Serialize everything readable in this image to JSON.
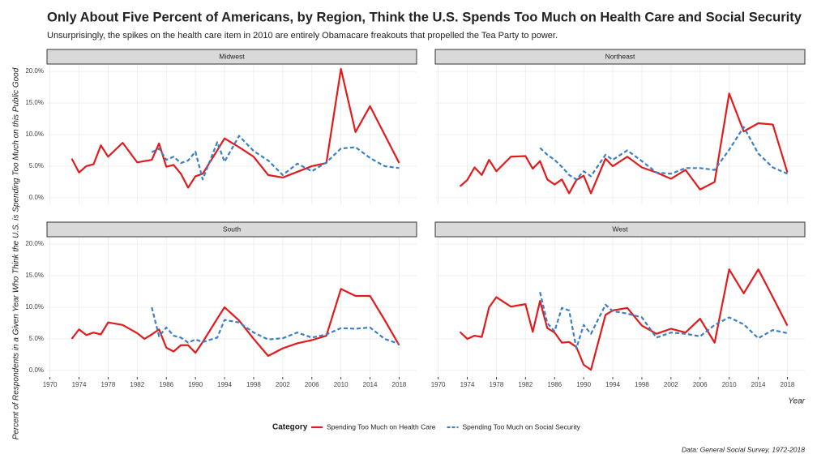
{
  "title": "Only About Five Percent of Americans, by Region, Think the U.S. Spends Too Much on Health Care and Social Security",
  "subtitle": "Unsurprisingly, the spikes on the health care item in 2010 are entirely Obamacare freakouts that propelled the Tea Party to power.",
  "y_label": "Percent of Respondents in a Given Year Who Think the U.S. is Spending Too Much on this Public Good",
  "x_label": "Year",
  "legend_title": "Category",
  "caption": "Data: General Social Survey, 1972-2018",
  "chart_data": [
    {
      "type": "line",
      "facet_label": "Midwest",
      "x": [
        1973,
        1974,
        1975,
        1976,
        1977,
        1978,
        1980,
        1982,
        1983,
        1984,
        1985,
        1986,
        1987,
        1988,
        1989,
        1990,
        1991,
        1993,
        1994,
        1996,
        1998,
        2000,
        2002,
        2004,
        2006,
        2008,
        2010,
        2012,
        2014,
        2016,
        2018
      ],
      "series": [
        {
          "name": "Spending Too Much on Health Care",
          "color": "#e31a1c",
          "dash": false,
          "values": [
            6.2,
            4.0,
            5.0,
            5.3,
            8.3,
            6.5,
            8.7,
            5.6,
            5.8,
            6.0,
            8.6,
            4.9,
            5.2,
            3.8,
            1.6,
            3.4,
            3.8,
            7.5,
            9.4,
            8.0,
            6.5,
            3.6,
            3.2,
            4.1,
            5.0,
            5.5,
            20.4,
            10.4,
            14.5,
            10.0,
            5.5
          ]
        },
        {
          "name": "Spending Too Much on Social Security",
          "color": "#3a80c3",
          "dash": true,
          "values": [
            null,
            null,
            null,
            null,
            null,
            null,
            null,
            null,
            null,
            7.2,
            7.8,
            6.0,
            6.5,
            5.5,
            5.9,
            7.3,
            2.9,
            8.8,
            5.7,
            9.8,
            7.4,
            5.9,
            3.6,
            5.4,
            4.2,
            5.6,
            7.8,
            8.0,
            6.3,
            5.0,
            4.7
          ]
        }
      ],
      "xlim": [
        1969.6,
        2020.4
      ],
      "ylim": [
        -1.04,
        21.04
      ],
      "xticks": [
        1970,
        1974,
        1978,
        1982,
        1986,
        1990,
        1994,
        1998,
        2002,
        2006,
        2010,
        2014,
        2018
      ],
      "yticks": [
        {
          "value": 0,
          "label": "0.0%"
        },
        {
          "value": 5,
          "label": "5.0%"
        },
        {
          "value": 10,
          "label": "10.0%"
        },
        {
          "value": 15,
          "label": "15.0%"
        },
        {
          "value": 20,
          "label": "20.0%"
        }
      ],
      "grid": true
    },
    {
      "type": "line",
      "facet_label": "Northeast",
      "x": [
        1973,
        1974,
        1975,
        1976,
        1977,
        1978,
        1980,
        1982,
        1983,
        1984,
        1985,
        1986,
        1987,
        1988,
        1989,
        1990,
        1991,
        1993,
        1994,
        1996,
        1998,
        2000,
        2002,
        2004,
        2006,
        2008,
        2010,
        2012,
        2014,
        2016,
        2018
      ],
      "series": [
        {
          "name": "Spending Too Much on Health Care",
          "color": "#e31a1c",
          "dash": false,
          "values": [
            1.8,
            2.8,
            4.8,
            3.6,
            6.0,
            4.2,
            6.5,
            6.6,
            4.6,
            5.8,
            2.9,
            2.1,
            2.9,
            0.7,
            2.8,
            3.5,
            0.7,
            6.2,
            5.0,
            6.5,
            4.8,
            4.0,
            3.0,
            4.4,
            1.3,
            2.5,
            16.5,
            10.5,
            11.8,
            11.6,
            4.0
          ]
        },
        {
          "name": "Spending Too Much on Social Security",
          "color": "#3a80c3",
          "dash": true,
          "values": [
            null,
            null,
            null,
            null,
            null,
            null,
            null,
            null,
            null,
            7.9,
            6.8,
            6.0,
            4.9,
            3.6,
            2.9,
            4.2,
            3.4,
            6.8,
            6.0,
            7.5,
            5.8,
            4.0,
            3.8,
            4.7,
            4.7,
            4.4,
            7.6,
            11.2,
            7.0,
            4.8,
            3.8
          ]
        }
      ],
      "xlim": [
        1969.6,
        2020.4
      ],
      "ylim": [
        -1.04,
        21.04
      ],
      "xticks": [
        1970,
        1974,
        1978,
        1982,
        1986,
        1990,
        1994,
        1998,
        2002,
        2006,
        2010,
        2014,
        2018
      ],
      "yticks": [
        {
          "value": 0,
          "label": "0.0%"
        },
        {
          "value": 5,
          "label": "5.0%"
        },
        {
          "value": 10,
          "label": "10.0%"
        },
        {
          "value": 15,
          "label": "15.0%"
        },
        {
          "value": 20,
          "label": "20.0%"
        }
      ],
      "grid": true
    },
    {
      "type": "line",
      "facet_label": "South",
      "x": [
        1973,
        1974,
        1975,
        1976,
        1977,
        1978,
        1980,
        1982,
        1983,
        1984,
        1985,
        1986,
        1987,
        1988,
        1989,
        1990,
        1991,
        1993,
        1994,
        1996,
        1998,
        2000,
        2002,
        2004,
        2006,
        2008,
        2010,
        2012,
        2014,
        2016,
        2018
      ],
      "series": [
        {
          "name": "Spending Too Much on Health Care",
          "color": "#e31a1c",
          "dash": false,
          "values": [
            5.0,
            6.5,
            5.6,
            6.0,
            5.7,
            7.6,
            7.2,
            5.9,
            5.0,
            5.7,
            6.5,
            3.6,
            3.0,
            4.0,
            4.0,
            2.8,
            4.5,
            8.2,
            10.0,
            7.9,
            5.0,
            2.3,
            3.5,
            4.3,
            4.8,
            5.5,
            12.9,
            11.8,
            11.8,
            8.0,
            4.0
          ]
        },
        {
          "name": "Spending Too Much on Social Security",
          "color": "#3a80c3",
          "dash": true,
          "values": [
            null,
            null,
            null,
            null,
            null,
            null,
            null,
            null,
            null,
            10.0,
            5.4,
            6.8,
            5.5,
            5.2,
            4.4,
            4.9,
            4.5,
            5.2,
            8.0,
            7.6,
            6.0,
            4.9,
            5.1,
            6.0,
            5.2,
            5.7,
            6.7,
            6.6,
            6.8,
            5.0,
            4.2
          ]
        }
      ],
      "xlim": [
        1969.6,
        2020.4
      ],
      "ylim": [
        -1.04,
        21.04
      ],
      "xticks": [
        1970,
        1974,
        1978,
        1982,
        1986,
        1990,
        1994,
        1998,
        2002,
        2006,
        2010,
        2014,
        2018
      ],
      "yticks": [
        {
          "value": 0,
          "label": "0.0%"
        },
        {
          "value": 5,
          "label": "5.0%"
        },
        {
          "value": 10,
          "label": "10.0%"
        },
        {
          "value": 15,
          "label": "15.0%"
        },
        {
          "value": 20,
          "label": "20.0%"
        }
      ],
      "grid": true
    },
    {
      "type": "line",
      "facet_label": "West",
      "x": [
        1973,
        1974,
        1975,
        1976,
        1977,
        1978,
        1980,
        1982,
        1983,
        1984,
        1985,
        1986,
        1987,
        1988,
        1989,
        1990,
        1991,
        1993,
        1994,
        1996,
        1998,
        2000,
        2002,
        2004,
        2006,
        2008,
        2010,
        2012,
        2014,
        2016,
        2018
      ],
      "series": [
        {
          "name": "Spending Too Much on Health Care",
          "color": "#e31a1c",
          "dash": false,
          "values": [
            6.1,
            5.0,
            5.5,
            5.3,
            10.0,
            11.6,
            10.1,
            10.5,
            6.1,
            11.0,
            6.7,
            6.0,
            4.4,
            4.5,
            3.7,
            0.9,
            0.1,
            8.8,
            9.5,
            9.9,
            7.1,
            5.8,
            6.6,
            6.0,
            8.2,
            4.4,
            16.0,
            12.2,
            16.0,
            11.6,
            7.1
          ]
        },
        {
          "name": "Spending Too Much on Social Security",
          "color": "#3a80c3",
          "dash": true,
          "values": [
            null,
            null,
            null,
            null,
            null,
            null,
            null,
            null,
            null,
            12.4,
            7.5,
            6.2,
            9.9,
            9.5,
            3.5,
            7.2,
            5.8,
            10.4,
            9.4,
            9.0,
            8.4,
            5.2,
            6.0,
            5.8,
            5.4,
            7.2,
            8.4,
            7.3,
            5.1,
            6.4,
            5.9
          ]
        }
      ],
      "xlim": [
        1969.6,
        2020.4
      ],
      "ylim": [
        -1.04,
        21.04
      ],
      "xticks": [
        1970,
        1974,
        1978,
        1982,
        1986,
        1990,
        1994,
        1998,
        2002,
        2006,
        2010,
        2014,
        2018
      ],
      "yticks": [
        {
          "value": 0,
          "label": "0.0%"
        },
        {
          "value": 5,
          "label": "5.0%"
        },
        {
          "value": 10,
          "label": "10.0%"
        },
        {
          "value": 15,
          "label": "15.0%"
        },
        {
          "value": 20,
          "label": "20.0%"
        }
      ],
      "grid": true
    }
  ]
}
